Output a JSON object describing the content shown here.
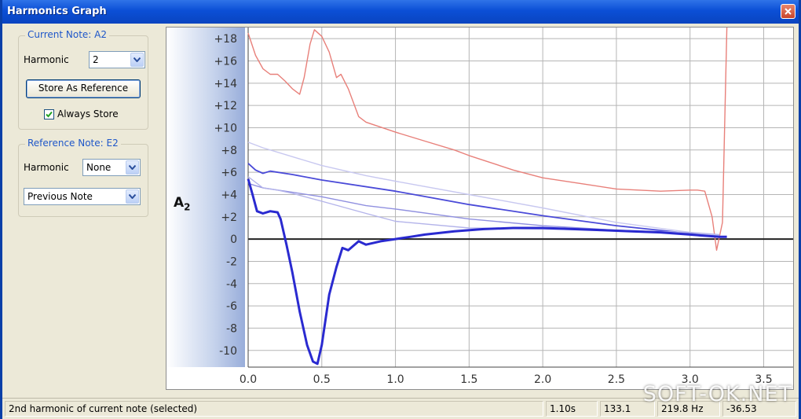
{
  "window": {
    "title": "Harmonics Graph"
  },
  "current_note": {
    "legend": "Current Note: A2",
    "harmonic_label": "Harmonic",
    "harmonic_value": "2",
    "store_button": "Store As Reference",
    "always_store_label": "Always Store",
    "always_store_checked": true
  },
  "reference_note": {
    "legend": "Reference Note: E2",
    "harmonic_label": "Harmonic",
    "harmonic_value": "None",
    "mode_value": "Previous Note"
  },
  "graph": {
    "note_label": "A",
    "note_sub": "2"
  },
  "chart_data": {
    "type": "line",
    "xlim": [
      0,
      3.7
    ],
    "ylim": [
      -11.5,
      19
    ],
    "x_ticks": [
      "0.0",
      "0.5",
      "1.0",
      "1.5",
      "2.0",
      "2.5",
      "3.0",
      "3.5"
    ],
    "y_ticks": [
      "+18",
      "+16",
      "+14",
      "+12",
      "+10",
      "+8",
      "+6",
      "+4",
      "+2",
      "0",
      "-2",
      "-4",
      "-6",
      "-8",
      "-10"
    ],
    "grid": true,
    "series": [
      {
        "color": "#e8807a",
        "x": [
          0,
          0.05,
          0.1,
          0.15,
          0.2,
          0.25,
          0.3,
          0.35,
          0.38,
          0.42,
          0.45,
          0.5,
          0.55,
          0.6,
          0.63,
          0.68,
          0.75,
          0.8,
          1.0,
          1.2,
          1.4,
          1.5,
          1.8,
          2.0,
          2.3,
          2.5,
          2.8,
          3.0,
          3.05,
          3.1,
          3.15,
          3.18,
          3.22,
          3.25
        ],
        "y": [
          18.5,
          16.5,
          15.3,
          14.8,
          14.8,
          14.2,
          13.5,
          13.0,
          14.5,
          17.5,
          18.8,
          18.2,
          16.8,
          14.5,
          14.8,
          13.5,
          11.0,
          10.5,
          9.6,
          8.8,
          8.0,
          7.5,
          6.2,
          5.5,
          4.9,
          4.5,
          4.3,
          4.4,
          4.4,
          4.3,
          2.0,
          -1.0,
          1.5,
          19.0
        ]
      },
      {
        "color": "#4a4ad8",
        "x": [
          0,
          0.05,
          0.1,
          0.15,
          0.3,
          0.5,
          1.0,
          1.5,
          2.0,
          2.5,
          3.0,
          3.2
        ],
        "y": [
          6.8,
          6.2,
          5.9,
          6.1,
          5.8,
          5.3,
          4.3,
          3.1,
          2.1,
          1.2,
          0.5,
          0.2
        ]
      },
      {
        "color": "#9090e0",
        "x": [
          0,
          0.1,
          0.3,
          0.5,
          0.8,
          1.0,
          1.5,
          2.0,
          2.5,
          3.0,
          3.2
        ],
        "y": [
          5.0,
          4.6,
          4.2,
          3.8,
          3.0,
          2.7,
          1.8,
          1.2,
          0.8,
          0.5,
          0.3
        ]
      },
      {
        "color": "#c8c8f0",
        "x": [
          0,
          0.1,
          0.3,
          0.5,
          0.8,
          1.0,
          1.5,
          2.0,
          2.5,
          3.0,
          3.2
        ],
        "y": [
          8.7,
          8.2,
          7.4,
          6.6,
          5.7,
          5.2,
          4.0,
          2.8,
          1.5,
          0.6,
          0.3
        ]
      },
      {
        "color": "#b4b4ea",
        "x": [
          0,
          0.1,
          0.2,
          0.3,
          0.5,
          0.8,
          1.0,
          1.5,
          2.0,
          2.5,
          3.0,
          3.2
        ],
        "y": [
          5.6,
          4.6,
          4.4,
          4.1,
          3.4,
          2.3,
          1.6,
          1.0,
          0.9,
          0.8,
          0.6,
          0.4
        ]
      },
      {
        "color": "#2a2ad0",
        "x": [
          0,
          0.03,
          0.06,
          0.1,
          0.15,
          0.2,
          0.22,
          0.26,
          0.3,
          0.35,
          0.4,
          0.44,
          0.47,
          0.5,
          0.55,
          0.6,
          0.64,
          0.68,
          0.75,
          0.8,
          0.9,
          1.0,
          1.1,
          1.2,
          1.4,
          1.6,
          1.8,
          2.0,
          2.2,
          2.4,
          2.6,
          2.8,
          3.0,
          3.1,
          3.2,
          3.25
        ],
        "y": [
          5.4,
          4.0,
          2.5,
          2.3,
          2.5,
          2.4,
          1.8,
          -0.5,
          -3.0,
          -6.5,
          -9.5,
          -11.0,
          -11.2,
          -9.5,
          -5.0,
          -2.5,
          -0.8,
          -1.0,
          -0.2,
          -0.5,
          -0.2,
          0.0,
          0.2,
          0.4,
          0.7,
          0.9,
          1.0,
          1.0,
          0.9,
          0.8,
          0.7,
          0.6,
          0.4,
          0.3,
          0.2,
          0.2
        ]
      }
    ]
  },
  "status": {
    "message": "2nd harmonic of current note (selected)",
    "time": "1.10s",
    "cell3": "133.1",
    "cell4": "219.8 Hz",
    "cell5": "-36.53"
  },
  "watermark": "SOFT-OK.NET"
}
